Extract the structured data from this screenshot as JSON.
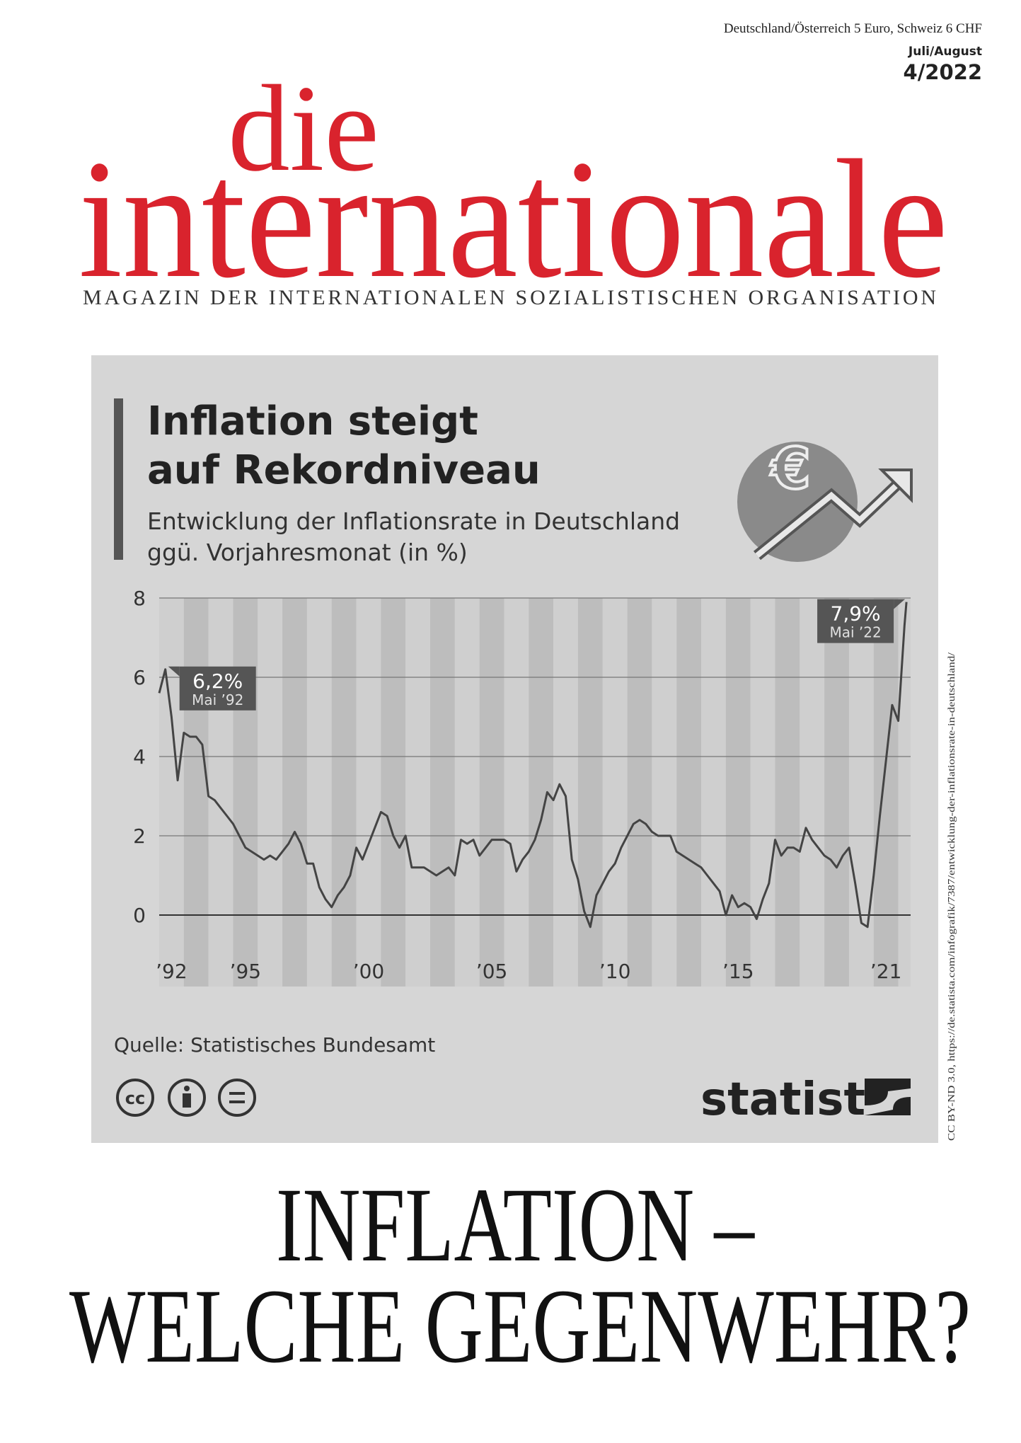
{
  "header": {
    "price": "Deutschland/Österreich 5 Euro, Schweiz 6 CHF",
    "issue_months": "Juli/August",
    "issue_number": "4/2022"
  },
  "masthead": {
    "line1": "die",
    "line2": "internationale",
    "tagline": "MAGAZIN DER INTERNATIONALEN SOZIALISTISCHEN ORGANISATION"
  },
  "chart_data": {
    "type": "line",
    "title": [
      "Inflation steigt",
      "auf Rekordniveau"
    ],
    "subtitle": [
      "Entwicklung der Inflationsrate in Deutschland",
      "ggü. Vorjahresmonat (in %)"
    ],
    "x": [
      1992,
      1992.25,
      1992.5,
      1992.75,
      1993,
      1993.25,
      1993.5,
      1993.75,
      1994,
      1994.25,
      1994.5,
      1994.75,
      1995,
      1995.25,
      1995.5,
      1995.75,
      1996,
      1996.25,
      1996.5,
      1996.75,
      1997,
      1997.25,
      1997.5,
      1997.75,
      1998,
      1998.25,
      1998.5,
      1998.75,
      1999,
      1999.25,
      1999.5,
      1999.75,
      2000,
      2000.25,
      2000.5,
      2000.75,
      2001,
      2001.25,
      2001.5,
      2001.75,
      2002,
      2002.25,
      2002.5,
      2002.75,
      2003,
      2003.25,
      2003.5,
      2003.75,
      2004,
      2004.25,
      2004.5,
      2004.75,
      2005,
      2005.25,
      2005.5,
      2005.75,
      2006,
      2006.25,
      2006.5,
      2006.75,
      2007,
      2007.25,
      2007.5,
      2007.75,
      2008,
      2008.25,
      2008.5,
      2008.75,
      2009,
      2009.25,
      2009.5,
      2009.75,
      2010,
      2010.25,
      2010.5,
      2010.75,
      2011,
      2011.25,
      2011.5,
      2011.75,
      2012,
      2012.25,
      2012.5,
      2012.75,
      2013,
      2013.25,
      2013.5,
      2013.75,
      2014,
      2014.25,
      2014.5,
      2014.75,
      2015,
      2015.25,
      2015.5,
      2015.75,
      2016,
      2016.25,
      2016.5,
      2016.75,
      2017,
      2017.25,
      2017.5,
      2017.75,
      2018,
      2018.25,
      2018.5,
      2018.75,
      2019,
      2019.25,
      2019.5,
      2019.75,
      2020,
      2020.25,
      2020.5,
      2020.75,
      2021,
      2021.25,
      2021.5,
      2021.75,
      2022,
      2022.25,
      2022.33
    ],
    "values": [
      5.6,
      6.2,
      5.0,
      3.4,
      4.6,
      4.5,
      4.5,
      4.3,
      3.0,
      2.9,
      2.7,
      2.5,
      2.3,
      2.0,
      1.7,
      1.6,
      1.5,
      1.4,
      1.5,
      1.4,
      1.6,
      1.8,
      2.1,
      1.8,
      1.3,
      1.3,
      0.7,
      0.4,
      0.2,
      0.5,
      0.7,
      1.0,
      1.7,
      1.4,
      1.8,
      2.2,
      2.6,
      2.5,
      2.0,
      1.7,
      2.0,
      1.2,
      1.2,
      1.2,
      1.1,
      1.0,
      1.1,
      1.2,
      1.0,
      1.9,
      1.8,
      1.9,
      1.5,
      1.7,
      1.9,
      1.9,
      1.9,
      1.8,
      1.1,
      1.4,
      1.6,
      1.9,
      2.4,
      3.1,
      2.9,
      3.3,
      3.0,
      1.4,
      0.9,
      0.1,
      -0.3,
      0.5,
      0.8,
      1.1,
      1.3,
      1.7,
      2.0,
      2.3,
      2.4,
      2.3,
      2.1,
      2.0,
      2.0,
      2.0,
      1.6,
      1.5,
      1.4,
      1.3,
      1.2,
      1.0,
      0.8,
      0.6,
      0.0,
      0.5,
      0.2,
      0.3,
      0.2,
      -0.1,
      0.4,
      0.8,
      1.9,
      1.5,
      1.7,
      1.7,
      1.6,
      2.2,
      1.9,
      1.7,
      1.5,
      1.4,
      1.2,
      1.5,
      1.7,
      0.8,
      -0.2,
      -0.3,
      1.0,
      2.5,
      3.9,
      5.3,
      4.9,
      7.3,
      7.9
    ],
    "color": "#444444",
    "xlim": [
      1992,
      2022.5
    ],
    "xticks": [
      {
        "value": 1992.5,
        "label": "’92"
      },
      {
        "value": 1995.5,
        "label": "’95"
      },
      {
        "value": 2000.5,
        "label": "’00"
      },
      {
        "value": 2005.5,
        "label": "’05"
      },
      {
        "value": 2010.5,
        "label": "’10"
      },
      {
        "value": 2015.5,
        "label": "’15"
      },
      {
        "value": 2021.5,
        "label": "’21"
      }
    ],
    "ylim": [
      -1,
      8
    ],
    "yticks": [
      0,
      2,
      4,
      6,
      8
    ],
    "grid": true,
    "annotations": [
      {
        "x": 1992.25,
        "value": 6.2,
        "label": "6,2%",
        "sublabel": "Mai ’92"
      },
      {
        "x": 2022.33,
        "value": 7.9,
        "label": "7,9%",
        "sublabel": "Mai ’22"
      }
    ],
    "source": "Quelle: Statistisches Bundesamt",
    "brand": "statista"
  },
  "credit": "CC BY-ND 3.0, https://de.statista.com/infografik/7387/entwicklung-der-inflationsrate-in-deutschland/",
  "headline": [
    "INFLATION –",
    "WELCHE GEGENWEHR?"
  ]
}
